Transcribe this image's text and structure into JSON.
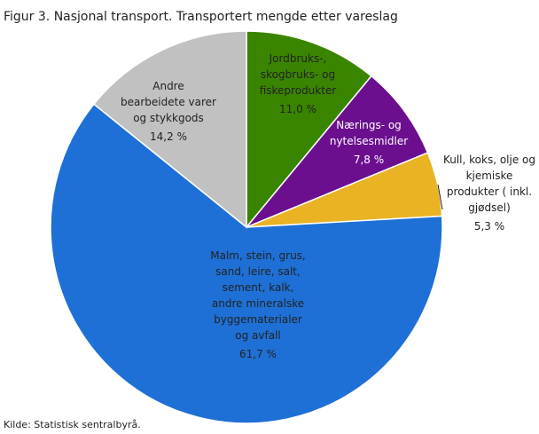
{
  "chart_data": {
    "type": "pie",
    "title": "Figur 3. Nasjonal transport. Transportert mengde etter vareslag",
    "source": "Kilde: Statistisk sentralbyrå.",
    "categories": [
      "Jordbruks-,\nskogbruks-  og\nfiskeprodukter",
      "Nærings-  og\nnytelsesmidler",
      "Kull,  koks,  olje og\nkjemiske\nprodukter  ( inkl.\ngjødsel)",
      "Malm,  stein,  grus,\nsand,  leire,  salt,\nsement,  kalk,\nandre  mineralske\nbyggematerialer\nog avfall",
      "Andre\nbearbeidete  varer\nog stykkgods"
    ],
    "values": [
      11.0,
      7.8,
      5.3,
      61.7,
      14.2
    ],
    "value_labels": [
      "11,0  %",
      "7,8  %",
      "5,3  %",
      "61,7  %",
      "14,2  %"
    ],
    "colors": [
      "#3a8500",
      "#6b0f8f",
      "#e9b324",
      "#1e70d6",
      "#c1c1c1"
    ]
  }
}
